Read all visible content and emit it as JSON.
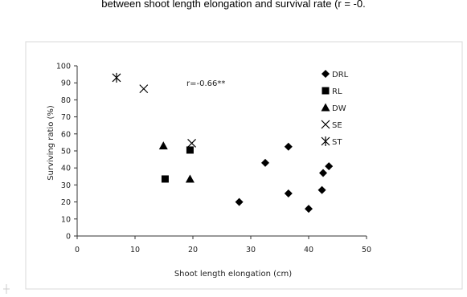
{
  "caption": "between shoot length elongation and survival rate (r = -0.",
  "chart_data": {
    "type": "scatter",
    "xlabel": "Shoot length elongation (cm)",
    "ylabel": "Surviving ratio (%)",
    "xlim": [
      0,
      50
    ],
    "ylim": [
      0,
      100
    ],
    "xticks": [
      0,
      10,
      20,
      30,
      40,
      50
    ],
    "yticks": [
      0,
      10,
      20,
      30,
      40,
      50,
      60,
      70,
      80,
      90,
      100
    ],
    "grid": false,
    "legend_position": "right",
    "annotation": "r=-0.66**",
    "series": [
      {
        "name": "DRL",
        "marker": "diamond",
        "points": [
          [
            28,
            20
          ],
          [
            32.5,
            43
          ],
          [
            36.5,
            52.5
          ],
          [
            36.5,
            25
          ],
          [
            40,
            16
          ],
          [
            42.3,
            27
          ],
          [
            42.5,
            37
          ],
          [
            43.5,
            41
          ]
        ]
      },
      {
        "name": "RL",
        "marker": "square",
        "points": [
          [
            15.2,
            33.5
          ],
          [
            19.5,
            50.5
          ]
        ]
      },
      {
        "name": "DW",
        "marker": "triangle",
        "points": [
          [
            14.9,
            53
          ],
          [
            19.5,
            33.5
          ]
        ]
      },
      {
        "name": "SE",
        "marker": "x",
        "points": [
          [
            11.5,
            86.5
          ],
          [
            19.8,
            54.5
          ]
        ]
      },
      {
        "name": "ST",
        "marker": "star",
        "points": [
          [
            6.8,
            93
          ]
        ]
      }
    ]
  }
}
